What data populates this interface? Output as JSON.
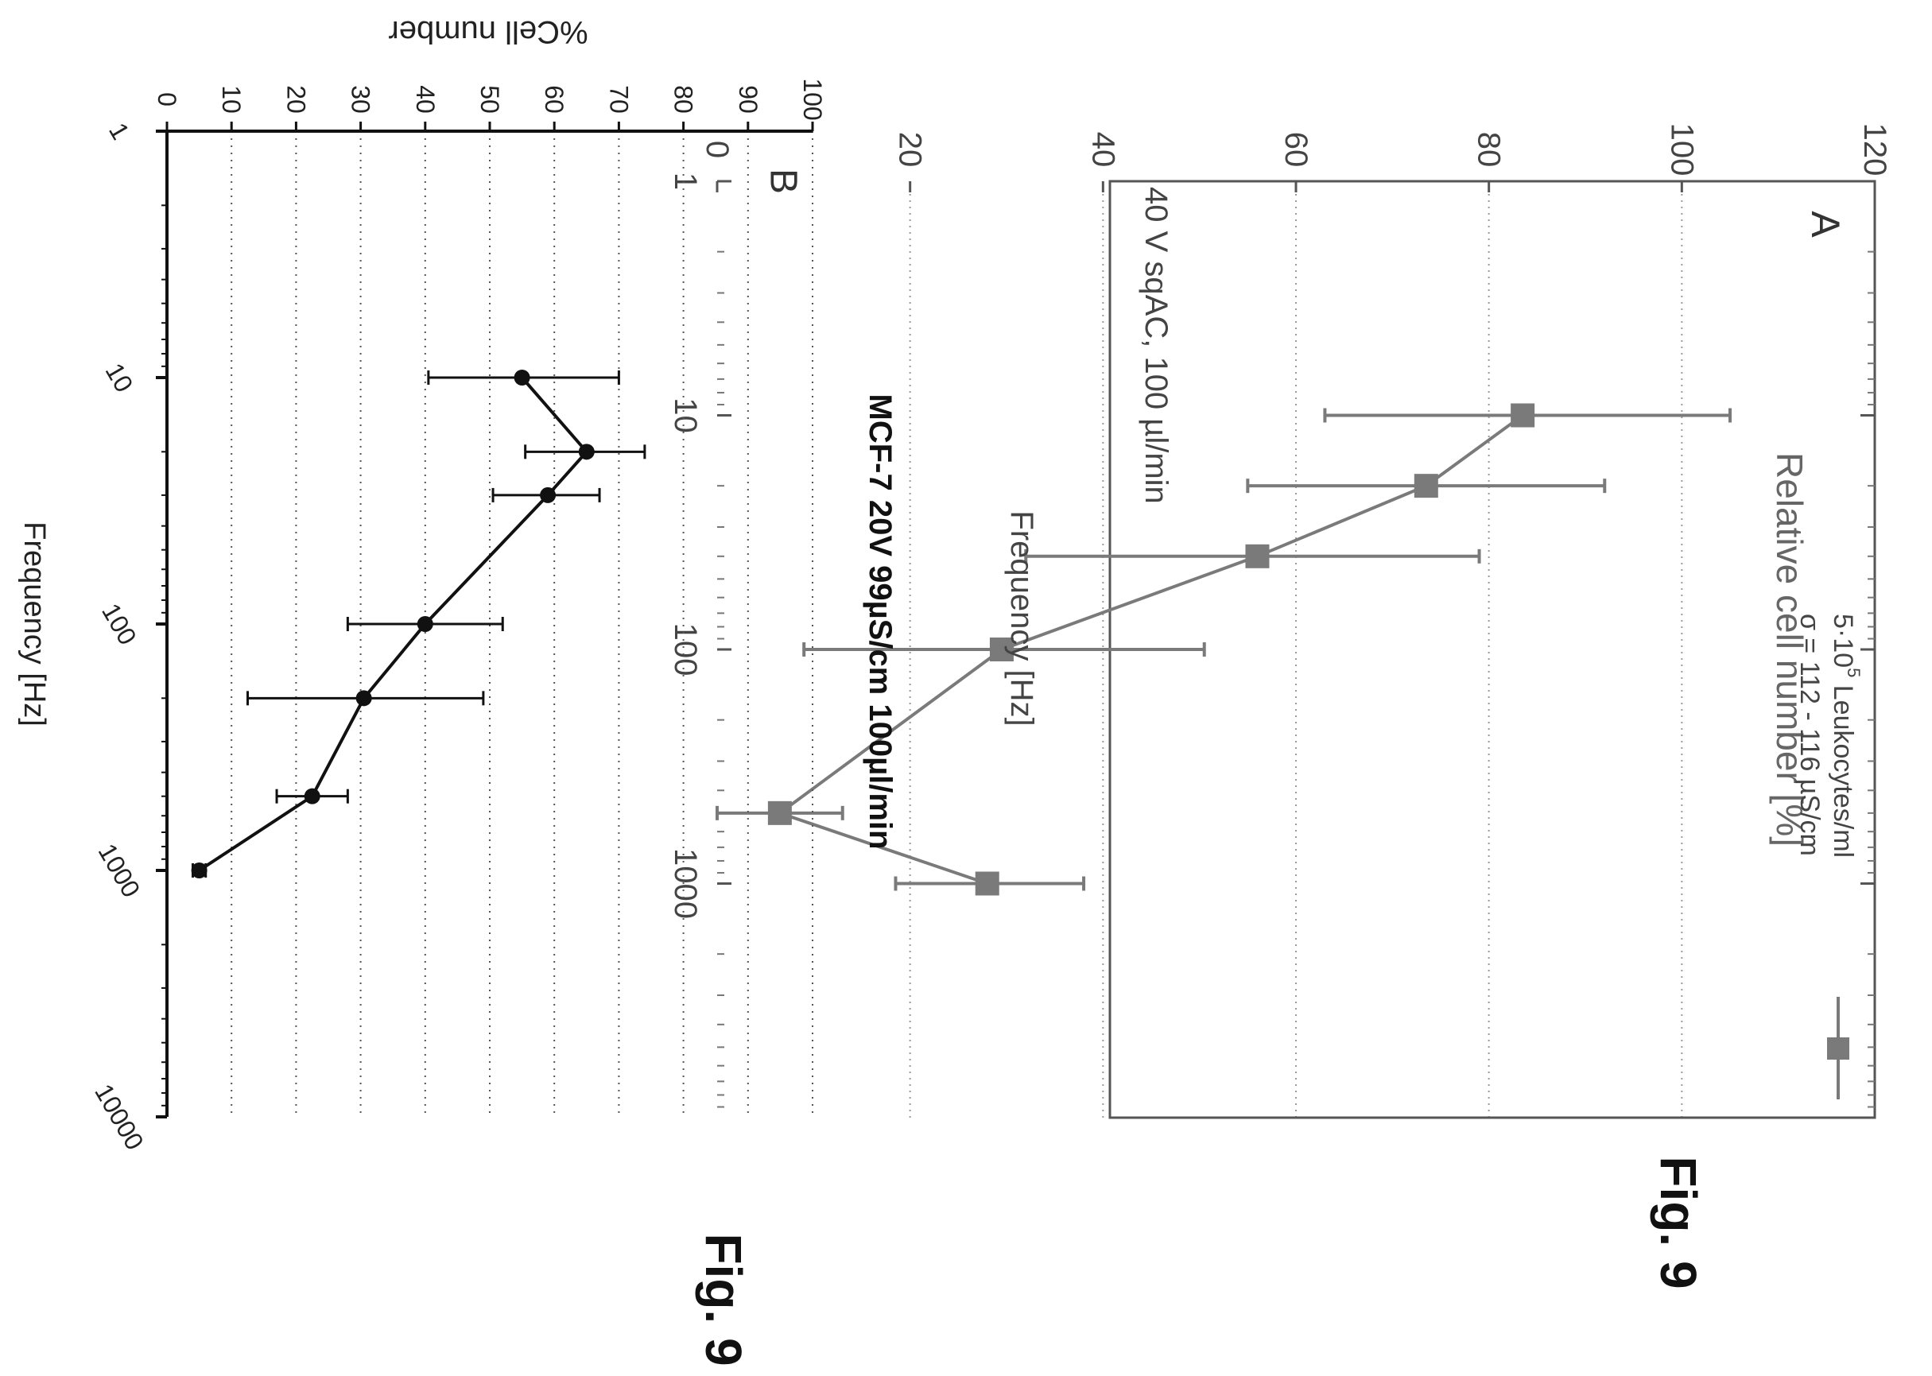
{
  "figure_labels": [
    "Fig. 9",
    "Fig. 9"
  ],
  "chart_data": [
    {
      "type": "line",
      "panel": "A",
      "title": "",
      "xlabel": "Frequency [Hz]",
      "ylabel": "Relative cell number [%]",
      "x_scale": "log",
      "xlim": [
        1,
        10000
      ],
      "ylim": [
        0,
        120
      ],
      "x_ticks": [
        1,
        10,
        100,
        1000
      ],
      "y_ticks": [
        0,
        20,
        40,
        60,
        80,
        100,
        120
      ],
      "grid": "horizontal dotted",
      "annotation": "40 V sqAC, 100 µl/min",
      "legend_line1_pre": "5·10",
      "legend_line1_sup": "5",
      "legend_line1_post": " Leukocytes/ml",
      "legend_line2": "σ = 112 - 116 µS/cm",
      "legend_position": "top-right",
      "marker": "square",
      "color": "#7a7a7a",
      "series": [
        {
          "x": [
            10,
            20,
            40,
            100,
            500,
            1000
          ],
          "y": [
            83.5,
            73.5,
            56,
            29.5,
            6.5,
            28
          ],
          "err_lo": [
            63,
            55,
            32,
            9,
            0,
            18.5
          ],
          "err_hi": [
            105,
            92,
            79,
            50.5,
            13,
            38
          ]
        }
      ]
    },
    {
      "type": "line",
      "panel": "B",
      "title": "MCF-7 20V 99µS/cm 100µl/min",
      "xlabel": "Frequency [Hz]",
      "ylabel": "%Cell number",
      "x_scale": "log",
      "xlim": [
        1,
        10000
      ],
      "ylim": [
        0,
        100
      ],
      "x_ticks": [
        1,
        10,
        100,
        1000,
        10000
      ],
      "y_ticks": [
        0,
        10,
        20,
        30,
        40,
        50,
        60,
        70,
        80,
        90,
        100
      ],
      "grid": "horizontal dotted",
      "marker": "circle",
      "color": "#111111",
      "series": [
        {
          "x": [
            10,
            20,
            30,
            100,
            200,
            500,
            1000
          ],
          "y": [
            55,
            65,
            59,
            40,
            30.5,
            22.5,
            5
          ],
          "err_lo": [
            40.5,
            55.5,
            50.5,
            28,
            12.5,
            17,
            4
          ],
          "err_hi": [
            70,
            74,
            67,
            52,
            49,
            28,
            6
          ]
        }
      ]
    }
  ]
}
